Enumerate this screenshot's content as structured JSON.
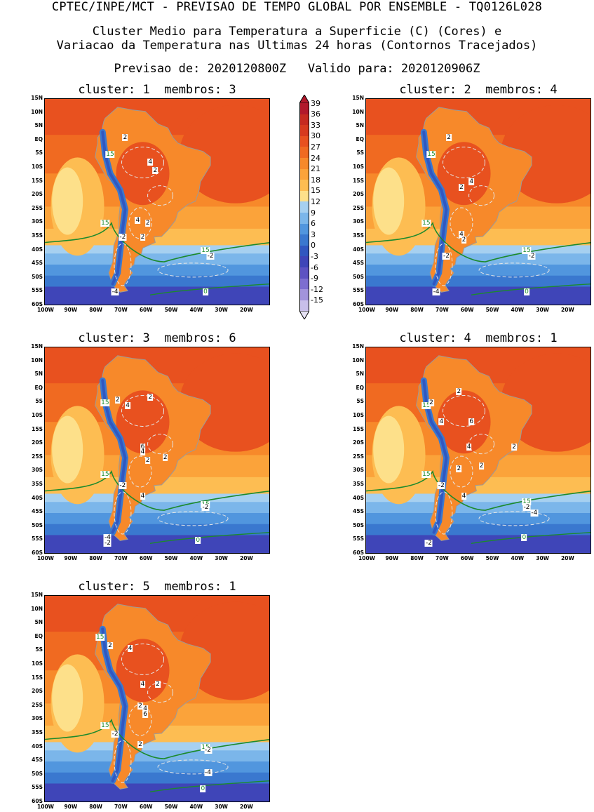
{
  "header": {
    "line1": "CPTEC/INPE/MCT - PREVISAO DE TEMPO GLOBAL POR ENSEMBLE - TQ0126L028",
    "line2": "Cluster Medio para Temperatura a Superficie (C) (Cores) e",
    "line3": "Variacao da Temperatura nas Ultimas 24 horas (Contornos Tracejados)",
    "line4": "Previsao de: 2020120800Z   Valido para: 2020120906Z"
  },
  "lat_labels": [
    "15N",
    "10N",
    "5N",
    "EQ",
    "5S",
    "10S",
    "15S",
    "20S",
    "25S",
    "30S",
    "35S",
    "40S",
    "45S",
    "50S",
    "55S",
    "60S"
  ],
  "lon_labels": [
    "100W",
    "90W",
    "80W",
    "70W",
    "60W",
    "50W",
    "40W",
    "30W",
    "20W"
  ],
  "colorbar": {
    "ticks": [
      "39",
      "36",
      "33",
      "30",
      "27",
      "24",
      "21",
      "18",
      "15",
      "12",
      "9",
      "6",
      "3",
      "0",
      "-3",
      "-6",
      "-9",
      "-12",
      "-15"
    ],
    "colors": [
      "#b2182b",
      "#c62a20",
      "#d73a1e",
      "#e8511f",
      "#f06a21",
      "#f7892a",
      "#fba33a",
      "#fdbd52",
      "#fde08a",
      "#a6d0f0",
      "#7bb6ea",
      "#5196de",
      "#3a78cf",
      "#3157c0",
      "#3f45b8",
      "#5d52c2",
      "#7d6ed0",
      "#a293dc",
      "#c9bfea"
    ]
  },
  "panels": [
    {
      "title": "cluster: 1  membros: 3",
      "labels": [
        {
          "t": "15",
          "g": true
        },
        {
          "t": "15",
          "g": true
        },
        {
          "t": "15",
          "g": true
        },
        {
          "t": "2"
        },
        {
          "t": "4"
        },
        {
          "t": "2"
        },
        {
          "t": "2"
        },
        {
          "t": "4"
        },
        {
          "t": "2"
        },
        {
          "t": "-2"
        },
        {
          "t": "-2"
        },
        {
          "t": "-4"
        },
        {
          "t": "0",
          "g": true
        }
      ]
    },
    {
      "title": "cluster: 2  membros: 4",
      "labels": [
        {
          "t": "15",
          "g": true
        },
        {
          "t": "15",
          "g": true
        },
        {
          "t": "15",
          "g": true
        },
        {
          "t": "2"
        },
        {
          "t": "2"
        },
        {
          "t": "4"
        },
        {
          "t": "4"
        },
        {
          "t": "2"
        },
        {
          "t": "-2"
        },
        {
          "t": "-2"
        },
        {
          "t": "-4"
        },
        {
          "t": "0",
          "g": true
        }
      ]
    },
    {
      "title": "cluster: 3  membros: 6",
      "labels": [
        {
          "t": "15",
          "g": true
        },
        {
          "t": "15",
          "g": true
        },
        {
          "t": "15",
          "g": true
        },
        {
          "t": "2"
        },
        {
          "t": "2"
        },
        {
          "t": "4"
        },
        {
          "t": "6"
        },
        {
          "t": "4"
        },
        {
          "t": "2"
        },
        {
          "t": "2"
        },
        {
          "t": "-2"
        },
        {
          "t": "4"
        },
        {
          "t": "-2"
        },
        {
          "t": "-4"
        },
        {
          "t": "-2"
        },
        {
          "t": "0",
          "g": true
        }
      ]
    },
    {
      "title": "cluster: 4  membros: 1",
      "labels": [
        {
          "t": "15",
          "g": true
        },
        {
          "t": "15",
          "g": true
        },
        {
          "t": "15",
          "g": true
        },
        {
          "t": "2"
        },
        {
          "t": "2"
        },
        {
          "t": "4"
        },
        {
          "t": "6"
        },
        {
          "t": "4"
        },
        {
          "t": "2"
        },
        {
          "t": "2"
        },
        {
          "t": "2"
        },
        {
          "t": "-2"
        },
        {
          "t": "4"
        },
        {
          "t": "-2"
        },
        {
          "t": "-4"
        },
        {
          "t": "-2"
        },
        {
          "t": "0",
          "g": true
        }
      ]
    },
    {
      "title": "cluster: 5  membros: 1",
      "labels": [
        {
          "t": "15",
          "g": true
        },
        {
          "t": "15",
          "g": true
        },
        {
          "t": "15",
          "g": true
        },
        {
          "t": "2"
        },
        {
          "t": "4"
        },
        {
          "t": "4"
        },
        {
          "t": "2"
        },
        {
          "t": "2"
        },
        {
          "t": "4"
        },
        {
          "t": "6"
        },
        {
          "t": "-2"
        },
        {
          "t": "2"
        },
        {
          "t": "-2"
        },
        {
          "t": "-4"
        },
        {
          "t": "0",
          "g": true
        }
      ]
    }
  ]
}
